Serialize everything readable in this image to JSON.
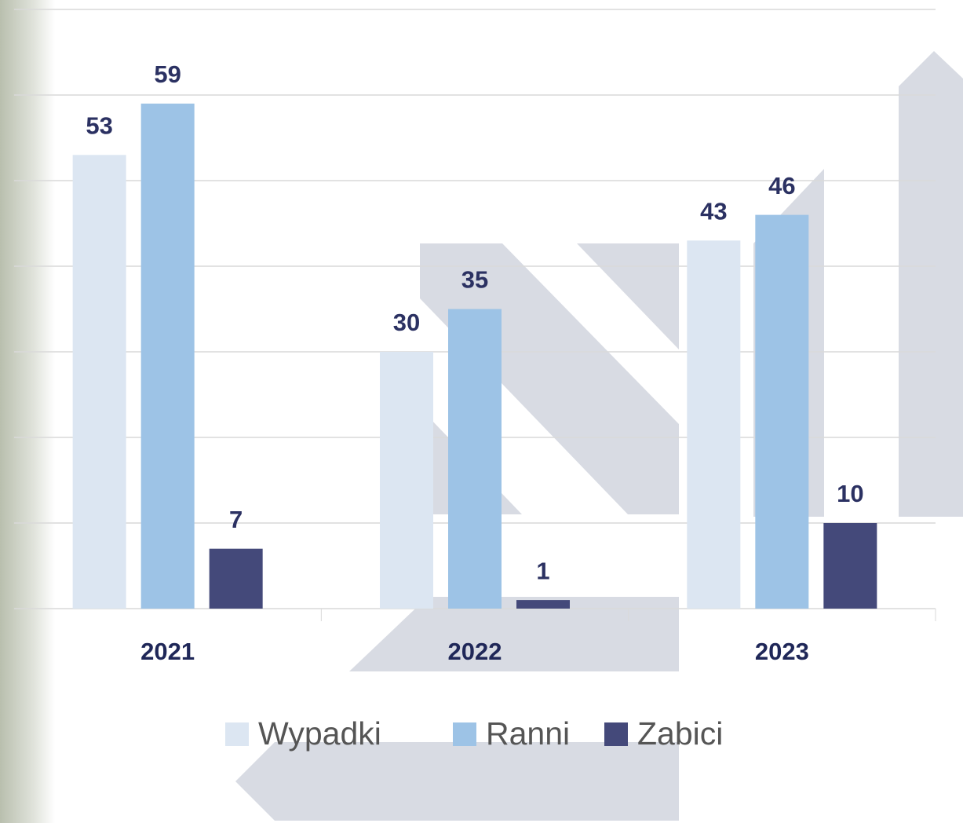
{
  "chart_data": {
    "type": "bar",
    "categories": [
      "2021",
      "2022",
      "2023"
    ],
    "series": [
      {
        "name": "Wypadki",
        "color": "#dce6f2",
        "values": [
          53,
          30,
          43
        ]
      },
      {
        "name": "Ranni",
        "color": "#9dc3e6",
        "values": [
          59,
          35,
          46
        ]
      },
      {
        "name": "Zabici",
        "color": "#44497a",
        "values": [
          7,
          1,
          10
        ]
      }
    ],
    "ylim": [
      0,
      70
    ],
    "yticks": [
      0,
      10,
      20,
      30,
      40,
      50,
      60,
      70
    ],
    "grid": true,
    "legend": "bottom"
  }
}
